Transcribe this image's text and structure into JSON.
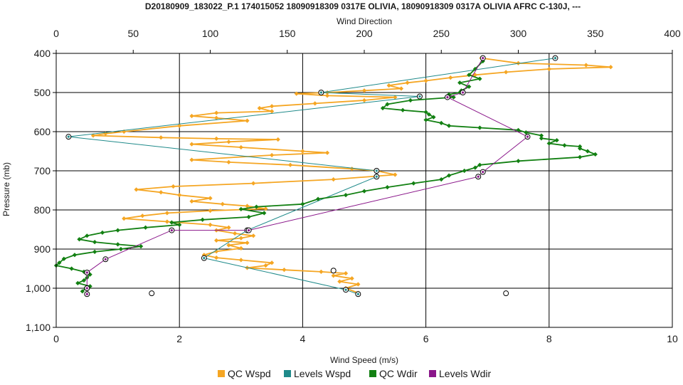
{
  "chart_data": {
    "type": "scatter",
    "title": "D20180909_183022_P.1 174015052 18090918309 0317E OLIVIA, 18090918309 0317A OLIVIA AFRC C-130J, ---",
    "xlabel": "Wind Speed (m/s)",
    "x2label": "Wind Direction",
    "ylabel": "Pressure (mb)",
    "xlim": [
      0,
      10
    ],
    "x2lim": [
      0,
      400
    ],
    "ylim": [
      400,
      1100
    ],
    "y_inverted": true,
    "grid": true,
    "legend_position": "bottom",
    "x_ticks": [
      "0",
      "2",
      "4",
      "6",
      "8",
      "10"
    ],
    "x2_ticks": [
      "0",
      "50",
      "100",
      "150",
      "200",
      "250",
      "300",
      "350",
      "400"
    ],
    "y_ticks": [
      "400",
      "500",
      "600",
      "700",
      "800",
      "900",
      "1,000",
      "1,100"
    ],
    "series": [
      {
        "name": "QC Wspd",
        "axis": "bottom",
        "color": "#f5a623",
        "points": [
          [
            6.9,
            412
          ],
          [
            7.5,
            425
          ],
          [
            8.6,
            430
          ],
          [
            9.0,
            435
          ],
          [
            8.0,
            440
          ],
          [
            7.3,
            448
          ],
          [
            6.8,
            455
          ],
          [
            6.4,
            462
          ],
          [
            6.0,
            470
          ],
          [
            5.7,
            475
          ],
          [
            5.4,
            482
          ],
          [
            5.6,
            490
          ],
          [
            5.0,
            495
          ],
          [
            4.4,
            500
          ],
          [
            3.9,
            503
          ],
          [
            4.4,
            508
          ],
          [
            5.5,
            512
          ],
          [
            5.0,
            520
          ],
          [
            4.2,
            528
          ],
          [
            3.5,
            535
          ],
          [
            3.3,
            540
          ],
          [
            3.5,
            548
          ],
          [
            2.6,
            552
          ],
          [
            2.2,
            560
          ],
          [
            2.6,
            565
          ],
          [
            3.1,
            572
          ],
          [
            2.0,
            585
          ],
          [
            1.1,
            600
          ],
          [
            0.8,
            605
          ],
          [
            0.6,
            610
          ],
          [
            1.7,
            615
          ],
          [
            2.6,
            618
          ],
          [
            3.6,
            620
          ],
          [
            2.8,
            626
          ],
          [
            2.2,
            632
          ],
          [
            3.0,
            640
          ],
          [
            4.0,
            650
          ],
          [
            4.4,
            654
          ],
          [
            3.5,
            660
          ],
          [
            2.2,
            672
          ],
          [
            2.8,
            678
          ],
          [
            3.8,
            685
          ],
          [
            4.8,
            695
          ],
          [
            5.2,
            700
          ],
          [
            5.5,
            710
          ],
          [
            4.5,
            722
          ],
          [
            3.2,
            732
          ],
          [
            1.9,
            740
          ],
          [
            1.3,
            748
          ],
          [
            1.7,
            755
          ],
          [
            2.0,
            762
          ],
          [
            2.5,
            770
          ],
          [
            2.2,
            778
          ],
          [
            2.7,
            785
          ],
          [
            3.1,
            790
          ],
          [
            3.4,
            797
          ],
          [
            2.5,
            802
          ],
          [
            1.8,
            808
          ],
          [
            1.4,
            815
          ],
          [
            1.1,
            822
          ],
          [
            1.8,
            830
          ],
          [
            2.5,
            838
          ],
          [
            2.8,
            845
          ],
          [
            2.6,
            852
          ],
          [
            2.9,
            860
          ],
          [
            3.2,
            866
          ],
          [
            3.0,
            872
          ],
          [
            2.6,
            878
          ],
          [
            3.1,
            884
          ],
          [
            2.8,
            890
          ],
          [
            3.0,
            898
          ],
          [
            2.6,
            906
          ],
          [
            2.4,
            915
          ],
          [
            2.6,
            922
          ],
          [
            3.0,
            928
          ],
          [
            3.5,
            935
          ],
          [
            3.4,
            942
          ],
          [
            3.1,
            948
          ],
          [
            3.7,
            953
          ],
          [
            4.3,
            958
          ],
          [
            4.7,
            962
          ],
          [
            4.5,
            968
          ],
          [
            4.8,
            975
          ],
          [
            4.6,
            983
          ],
          [
            4.9,
            990
          ],
          [
            4.7,
            1000
          ],
          [
            4.9,
            1012
          ]
        ]
      },
      {
        "name": "Levels Wspd",
        "axis": "bottom",
        "color": "#1f8a8a",
        "points": [
          [
            8.1,
            412
          ],
          [
            4.3,
            500
          ],
          [
            5.9,
            510
          ],
          [
            0.2,
            613
          ],
          [
            5.2,
            700
          ],
          [
            5.2,
            715
          ],
          [
            3.1,
            852
          ],
          [
            2.4,
            923
          ],
          [
            4.7,
            1004
          ],
          [
            4.9,
            1015
          ]
        ]
      },
      {
        "name": "QC Wdir",
        "axis": "top",
        "color": "#128012",
        "points": [
          [
            277,
            420
          ],
          [
            272,
            440
          ],
          [
            268,
            455
          ],
          [
            275,
            465
          ],
          [
            262,
            475
          ],
          [
            268,
            485
          ],
          [
            263,
            495
          ],
          [
            262,
            500
          ],
          [
            255,
            505
          ],
          [
            258,
            512
          ],
          [
            230,
            520
          ],
          [
            215,
            530
          ],
          [
            212,
            540
          ],
          [
            225,
            545
          ],
          [
            240,
            550
          ],
          [
            242,
            556
          ],
          [
            245,
            563
          ],
          [
            240,
            570
          ],
          [
            250,
            578
          ],
          [
            255,
            585
          ],
          [
            275,
            590
          ],
          [
            300,
            596
          ],
          [
            305,
            602
          ],
          [
            315,
            610
          ],
          [
            315,
            617
          ],
          [
            325,
            622
          ],
          [
            320,
            630
          ],
          [
            330,
            635
          ],
          [
            340,
            638
          ],
          [
            340,
            643
          ],
          [
            345,
            650
          ],
          [
            350,
            658
          ],
          [
            340,
            665
          ],
          [
            300,
            675
          ],
          [
            275,
            685
          ],
          [
            272,
            692
          ],
          [
            265,
            700
          ],
          [
            255,
            712
          ],
          [
            250,
            722
          ],
          [
            232,
            732
          ],
          [
            215,
            742
          ],
          [
            200,
            752
          ],
          [
            188,
            762
          ],
          [
            170,
            772
          ],
          [
            160,
            785
          ],
          [
            130,
            792
          ],
          [
            120,
            798
          ],
          [
            135,
            808
          ],
          [
            125,
            818
          ],
          [
            95,
            825
          ],
          [
            75,
            832
          ],
          [
            80,
            838
          ],
          [
            58,
            845
          ],
          [
            40,
            852
          ],
          [
            30,
            858
          ],
          [
            20,
            866
          ],
          [
            15,
            875
          ],
          [
            25,
            882
          ],
          [
            40,
            888
          ],
          [
            55,
            893
          ],
          [
            42,
            900
          ],
          [
            25,
            907
          ],
          [
            12,
            915
          ],
          [
            5,
            925
          ],
          [
            2,
            935
          ],
          [
            0,
            942
          ],
          [
            10,
            950
          ],
          [
            18,
            958
          ],
          [
            22,
            965
          ],
          [
            20,
            973
          ],
          [
            18,
            980
          ],
          [
            14,
            987
          ],
          [
            22,
            995
          ],
          [
            19,
            1000
          ],
          [
            17,
            1008
          ]
        ]
      },
      {
        "name": "Levels Wdir",
        "axis": "top",
        "color": "#8a168a",
        "points": [
          [
            277,
            412
          ],
          [
            264,
            500
          ],
          [
            254,
            512
          ],
          [
            306,
            613
          ],
          [
            277,
            703
          ],
          [
            274,
            715
          ],
          [
            125,
            852
          ],
          [
            75,
            852
          ],
          [
            32,
            926
          ],
          [
            20,
            960
          ],
          [
            20,
            1000
          ],
          [
            20,
            1015
          ]
        ]
      }
    ],
    "unassigned_markers": [
      [
        4.5,
        955
      ],
      [
        1.55,
        1013
      ],
      [
        7.3,
        1013
      ]
    ]
  }
}
